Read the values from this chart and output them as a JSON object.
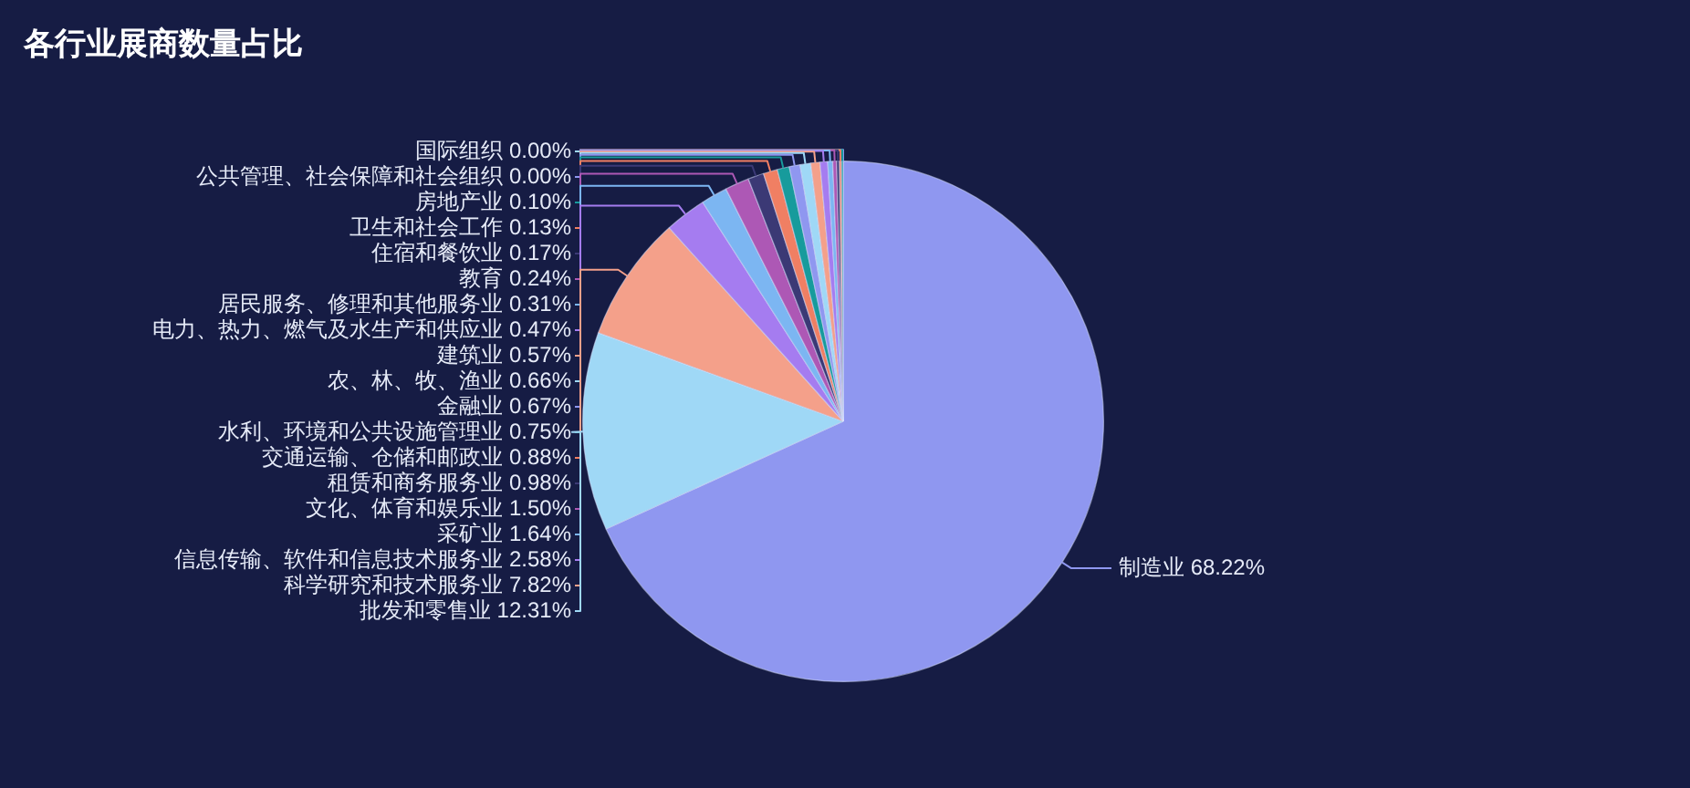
{
  "chart_data": {
    "type": "pie",
    "title": "各行业展商数量占比",
    "categories": [
      "制造业",
      "批发和零售业",
      "科学研究和技术服务业",
      "信息传输、软件和信息技术服务业",
      "采矿业",
      "文化、体育和娱乐业",
      "租赁和商务服务业",
      "交通运输、仓储和邮政业",
      "水利、环境和公共设施管理业",
      "金融业",
      "农、林、牧、渔业",
      "建筑业",
      "电力、热力、燃气及水生产和供应业",
      "居民服务、修理和其他服务业",
      "教育",
      "住宿和餐饮业",
      "卫生和社会工作",
      "房地产业",
      "公共管理、社会保障和社会组织",
      "国际组织"
    ],
    "values": [
      68.22,
      12.31,
      7.82,
      2.58,
      1.64,
      1.5,
      0.98,
      0.88,
      0.75,
      0.67,
      0.66,
      0.57,
      0.47,
      0.31,
      0.24,
      0.17,
      0.13,
      0.1,
      0.0,
      0.0
    ],
    "value_labels": [
      "68.22%",
      "12.31%",
      "7.82%",
      "2.58%",
      "1.64%",
      "1.50%",
      "0.98%",
      "0.88%",
      "0.75%",
      "0.67%",
      "0.66%",
      "0.57%",
      "0.47%",
      "0.31%",
      "0.24%",
      "0.17%",
      "0.13%",
      "0.10%",
      "0.00%",
      "0.00%"
    ],
    "colors": [
      "#8f97f0",
      "#9fd8f6",
      "#f4a08a",
      "#a57cf0",
      "#7cb6f2",
      "#ad58b5",
      "#3b3975",
      "#f07f63",
      "#179b9c",
      "#8f97f0",
      "#9fd8f6",
      "#f4a08a",
      "#a57cf0",
      "#7cb6f2",
      "#ad58b5",
      "#3b3975",
      "#f07f63",
      "#179b9c",
      "#8f97f0",
      "#9fd8f6"
    ]
  }
}
